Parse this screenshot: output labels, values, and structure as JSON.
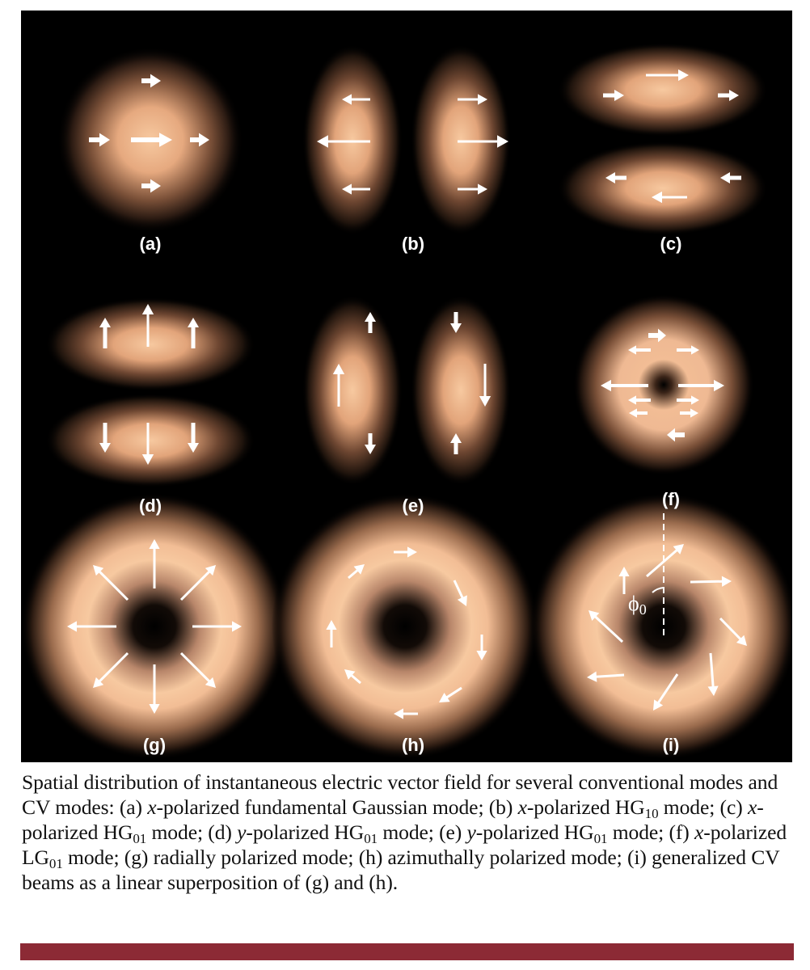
{
  "figure": {
    "panels": [
      {
        "id": "a",
        "label": "(a)",
        "mode": "x-polarized fundamental Gaussian"
      },
      {
        "id": "b",
        "label": "(b)",
        "mode": "x-polarized HG10"
      },
      {
        "id": "c",
        "label": "(c)",
        "mode": "x-polarized HG01"
      },
      {
        "id": "d",
        "label": "(d)",
        "mode": "y-polarized HG01"
      },
      {
        "id": "e",
        "label": "(e)",
        "mode": "y-polarized HG01"
      },
      {
        "id": "f",
        "label": "(f)",
        "mode": "x-polarized LG01"
      },
      {
        "id": "g",
        "label": "(g)",
        "mode": "radially polarized"
      },
      {
        "id": "h",
        "label": "(h)",
        "mode": "azimuthally polarized"
      },
      {
        "id": "i",
        "label": "(i)",
        "mode": "generalized CV beam"
      }
    ],
    "angle_symbol": "ϕ",
    "angle_subscript": "0",
    "colors": {
      "background": "#000000",
      "beam": "#f6c79e",
      "arrow": "#ffffff",
      "rule": "#8c2a35"
    }
  },
  "caption": {
    "p1": "Spatial distribution of instantaneous electric vector field for several conventional modes and CV modes: (a) ",
    "x1": "x",
    "p2": "-polarized fundamental Gaussian mode; (b) ",
    "x2": "x",
    "p3": "-polarized HG",
    "s3": "10",
    "p4": " mode; (c) ",
    "x4": "x",
    "p5": "-polarized HG",
    "s5": "01",
    "p6": " mode; (d) ",
    "x6": "y",
    "p7": "-polarized HG",
    "s7": "01",
    "p8": " mode; (e) ",
    "x8": "y",
    "p9": "-polarized HG",
    "s9": "01",
    "p10": " mode; (f) ",
    "x10": "x",
    "p11": "-polarized LG",
    "s11": "01",
    "p12": " mode; (g) radially polarized mode; (h) azimuthally polarized mode; (i) generalized CV beams as a linear superposition of (g) and (h)."
  }
}
